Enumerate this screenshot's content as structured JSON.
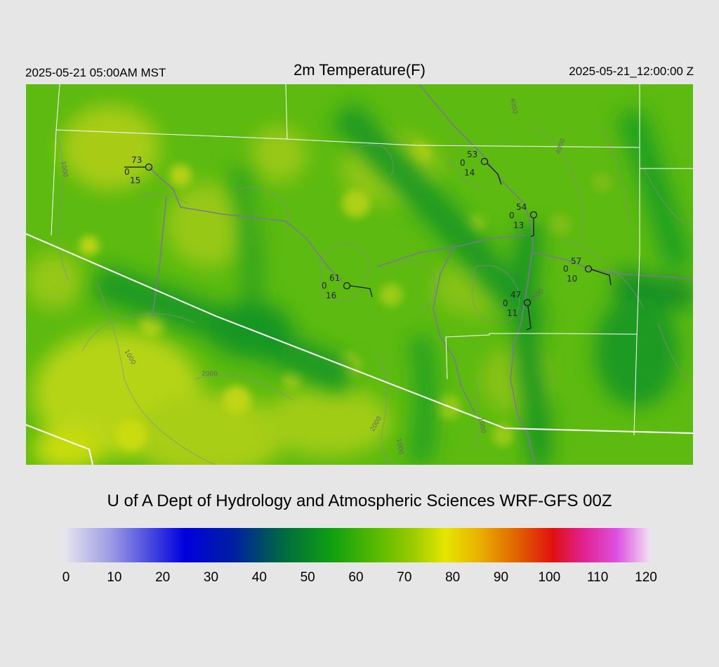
{
  "header": {
    "local_time": "2025-05-21 05:00AM MST",
    "title": "2m Temperature(F)",
    "utc_time": "2025-05-21_12:00:00 Z"
  },
  "credit": "U of A Dept of Hydrology and Atmospheric Sciences WRF-GFS 00Z",
  "colorbar": {
    "min": 0,
    "max": 120,
    "tick_labels": [
      "0",
      "10",
      "20",
      "30",
      "40",
      "50",
      "60",
      "70",
      "80",
      "90",
      "100",
      "110",
      "120"
    ],
    "color_stops": [
      {
        "value": 0,
        "color": "#e8e8f0"
      },
      {
        "value": 10,
        "color": "#9a9ae4"
      },
      {
        "value": 25,
        "color": "#0000dc"
      },
      {
        "value": 35,
        "color": "#0020a0"
      },
      {
        "value": 45,
        "color": "#006a40"
      },
      {
        "value": 55,
        "color": "#10a010"
      },
      {
        "value": 65,
        "color": "#60bc00"
      },
      {
        "value": 72,
        "color": "#a0cc00"
      },
      {
        "value": 78,
        "color": "#e6e600"
      },
      {
        "value": 85,
        "color": "#e8b000"
      },
      {
        "value": 93,
        "color": "#e06000"
      },
      {
        "value": 100,
        "color": "#e01010"
      },
      {
        "value": 106,
        "color": "#e0208c"
      },
      {
        "value": 113,
        "color": "#dc50e0"
      },
      {
        "value": 120,
        "color": "#f2e2f2"
      }
    ]
  },
  "stations": [
    {
      "temp": "73",
      "dew": "15",
      "cloud": "0"
    },
    {
      "temp": "53",
      "dew": "14",
      "cloud": "0"
    },
    {
      "temp": "54",
      "dew": "13",
      "cloud": "0"
    },
    {
      "temp": "61",
      "dew": "16",
      "cloud": "0"
    },
    {
      "temp": "57",
      "dew": "10",
      "cloud": "0"
    },
    {
      "temp": "47",
      "dew": "11",
      "cloud": "0"
    }
  ],
  "contour_labels": [
    "1000",
    "1000",
    "2000",
    "2000",
    "2000",
    "4000",
    "4000",
    "1000",
    "1000"
  ]
}
